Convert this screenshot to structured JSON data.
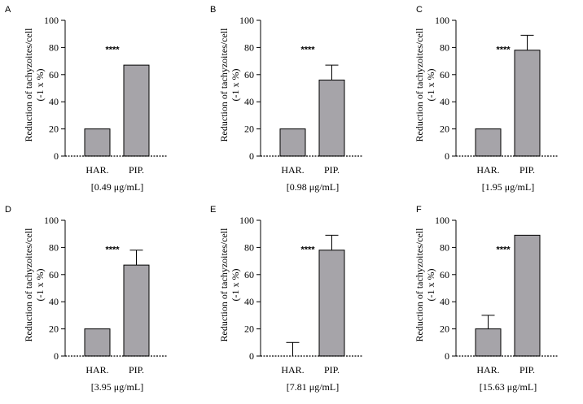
{
  "chart_data": [
    {
      "panel": "A",
      "type": "bar",
      "title": "",
      "ylabel_line1": "Reduction of tachyzoites/cell",
      "ylabel_line2": "(-1 x %)",
      "xlabel": "[0.49 μg/mL]",
      "categories": [
        "HAR.",
        "PIP."
      ],
      "values": [
        20,
        67
      ],
      "errors": [
        0,
        0
      ],
      "ylim": [
        0,
        100
      ],
      "yticks": [
        "0",
        "20",
        "40",
        "60",
        "80",
        "100"
      ],
      "significance": "****"
    },
    {
      "panel": "B",
      "type": "bar",
      "title": "",
      "ylabel_line1": "Reduction of tachyzoites/cell",
      "ylabel_line2": "(-1 x %)",
      "xlabel": "[0.98 μg/mL]",
      "categories": [
        "HAR.",
        "PIP."
      ],
      "values": [
        20,
        56
      ],
      "errors": [
        0,
        11
      ],
      "ylim": [
        0,
        100
      ],
      "yticks": [
        "0",
        "20",
        "40",
        "60",
        "80",
        "100"
      ],
      "significance": "****"
    },
    {
      "panel": "C",
      "type": "bar",
      "title": "",
      "ylabel_line1": "Reduction of tachyzoites/cell",
      "ylabel_line2": "(-1 x %)",
      "xlabel": "[1.95 μg/mL]",
      "categories": [
        "HAR.",
        "PIP."
      ],
      "values": [
        20,
        78
      ],
      "errors": [
        0,
        11
      ],
      "ylim": [
        0,
        100
      ],
      "yticks": [
        "0",
        "20",
        "40",
        "60",
        "80",
        "100"
      ],
      "significance": "****"
    },
    {
      "panel": "D",
      "type": "bar",
      "title": "",
      "ylabel_line1": "Reduction of tachyzoites/cell",
      "ylabel_line2": "(-1 x %)",
      "xlabel": "[3.95 μg/mL]",
      "categories": [
        "HAR.",
        "PIP."
      ],
      "values": [
        20,
        67
      ],
      "errors": [
        0,
        11
      ],
      "ylim": [
        0,
        100
      ],
      "yticks": [
        "0",
        "20",
        "40",
        "60",
        "80",
        "100"
      ],
      "significance": "****"
    },
    {
      "panel": "E",
      "type": "bar",
      "title": "",
      "ylabel_line1": "Reduction of tachyzoites/cell",
      "ylabel_line2": "(-1 x %)",
      "xlabel": "[7.81 μg/mL]",
      "categories": [
        "HAR.",
        "PIP."
      ],
      "values": [
        0,
        78
      ],
      "errors": [
        10,
        11
      ],
      "ylim": [
        0,
        100
      ],
      "yticks": [
        "0",
        "20",
        "40",
        "60",
        "80",
        "100"
      ],
      "significance": "****"
    },
    {
      "panel": "F",
      "type": "bar",
      "title": "",
      "ylabel_line1": "Reduction of tachyzoites/cell",
      "ylabel_line2": "(-1 x %)",
      "xlabel": "[15.63 μg/mL]",
      "categories": [
        "HAR.",
        "PIP."
      ],
      "values": [
        20,
        89
      ],
      "errors": [
        10,
        0
      ],
      "ylim": [
        0,
        100
      ],
      "yticks": [
        "0",
        "20",
        "40",
        "60",
        "80",
        "100"
      ],
      "significance": "****"
    }
  ],
  "colors": {
    "bar_fill": "#a6a4a9",
    "bar_stroke": "#000000",
    "axis": "#000000"
  }
}
